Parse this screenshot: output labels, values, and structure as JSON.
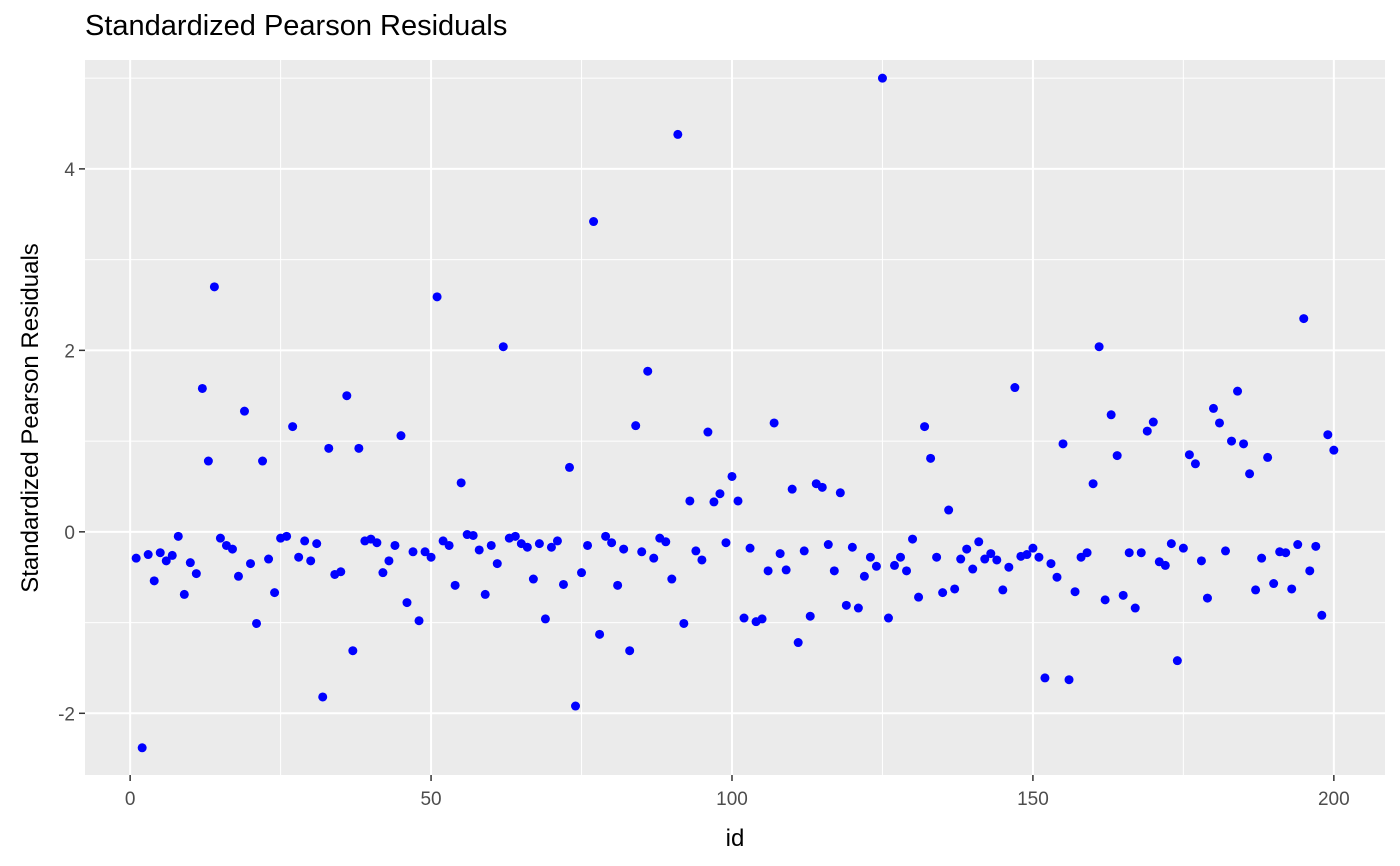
{
  "chart_data": {
    "type": "scatter",
    "title": "Standardized Pearson Residuals",
    "xlabel": "id",
    "ylabel": "Standardized Pearson Residuals",
    "xlim": [
      -7.5,
      208.5
    ],
    "ylim": [
      -2.68,
      5.2
    ],
    "x_ticks": [
      0,
      50,
      100,
      150,
      200
    ],
    "x_tick_labels": [
      "0",
      "50",
      "100",
      "150",
      "200"
    ],
    "y_ticks": [
      -2,
      0,
      2,
      4
    ],
    "y_tick_labels": [
      "-2",
      "0",
      "2",
      "4"
    ],
    "x_minor": [
      25,
      75,
      125,
      175
    ],
    "y_minor": [
      -1,
      1,
      3,
      5
    ],
    "grid": true,
    "legend": "none",
    "point_color": "#0000ff",
    "panel_color": "#ebebeb",
    "grid_color": "#ffffff",
    "x": [
      1,
      2,
      3,
      4,
      5,
      6,
      7,
      8,
      9,
      10,
      11,
      12,
      13,
      14,
      15,
      16,
      17,
      18,
      19,
      20,
      21,
      22,
      23,
      24,
      25,
      26,
      27,
      28,
      29,
      30,
      31,
      32,
      33,
      34,
      35,
      36,
      37,
      38,
      39,
      40,
      41,
      42,
      43,
      44,
      45,
      46,
      47,
      48,
      49,
      50,
      51,
      52,
      53,
      54,
      55,
      56,
      57,
      58,
      59,
      60,
      61,
      62,
      63,
      64,
      65,
      66,
      67,
      68,
      69,
      70,
      71,
      72,
      73,
      74,
      75,
      76,
      77,
      78,
      79,
      80,
      81,
      82,
      83,
      84,
      85,
      86,
      87,
      88,
      89,
      90,
      91,
      92,
      93,
      94,
      95,
      96,
      97,
      98,
      99,
      100,
      101,
      102,
      103,
      104,
      105,
      106,
      107,
      108,
      109,
      110,
      111,
      112,
      113,
      114,
      115,
      116,
      117,
      118,
      119,
      120,
      121,
      122,
      123,
      124,
      125,
      126,
      127,
      128,
      129,
      130,
      131,
      132,
      133,
      134,
      135,
      136,
      137,
      138,
      139,
      140,
      141,
      142,
      143,
      144,
      145,
      146,
      147,
      148,
      149,
      150,
      151,
      152,
      153,
      154,
      155,
      156,
      157,
      158,
      159,
      160,
      161,
      162,
      163,
      164,
      165,
      166,
      167,
      168,
      169,
      170,
      171,
      172,
      173,
      174,
      175,
      176,
      177,
      178,
      179,
      180,
      181,
      182,
      183,
      184,
      185,
      186,
      187,
      188,
      189,
      190,
      191,
      192,
      193,
      194,
      195,
      196,
      197,
      198,
      199,
      200
    ],
    "y": [
      -0.29,
      -2.38,
      -0.25,
      -0.54,
      -0.23,
      -0.32,
      -0.26,
      -0.05,
      -0.69,
      -0.34,
      -0.46,
      1.58,
      0.78,
      2.7,
      -0.07,
      -0.15,
      -0.19,
      -0.49,
      1.33,
      -0.35,
      -1.01,
      0.78,
      -0.3,
      -0.67,
      -0.07,
      -0.05,
      1.16,
      -0.28,
      -0.1,
      -0.32,
      -0.13,
      -1.82,
      0.92,
      -0.47,
      -0.44,
      1.5,
      -1.31,
      0.92,
      -0.1,
      -0.08,
      -0.12,
      -0.45,
      -0.32,
      -0.15,
      1.06,
      -0.78,
      -0.22,
      -0.98,
      -0.22,
      -0.28,
      2.59,
      -0.1,
      -0.15,
      -0.59,
      0.54,
      -0.03,
      -0.04,
      -0.2,
      -0.69,
      -0.15,
      -0.35,
      2.04,
      -0.07,
      -0.05,
      -0.13,
      -0.17,
      -0.52,
      -0.13,
      -0.96,
      -0.17,
      -0.1,
      -0.58,
      0.71,
      -1.92,
      -0.45,
      -0.15,
      3.42,
      -1.13,
      -0.05,
      -0.12,
      -0.59,
      -0.19,
      -1.31,
      1.17,
      -0.22,
      1.77,
      -0.29,
      -0.07,
      -0.11,
      -0.52,
      4.38,
      -1.01,
      0.34,
      -0.21,
      -0.31,
      1.1,
      0.33,
      0.42,
      -0.12,
      0.61,
      0.34,
      -0.95,
      -0.18,
      -0.99,
      -0.96,
      -0.43,
      1.2,
      -0.24,
      -0.42,
      0.47,
      -1.22,
      -0.21,
      -0.93,
      0.53,
      0.49,
      -0.14,
      -0.43,
      0.43,
      -0.81,
      -0.17,
      -0.84,
      -0.49,
      -0.28,
      -0.38,
      5.0,
      -0.95,
      -0.37,
      -0.28,
      -0.43,
      -0.08,
      -0.72,
      1.16,
      0.81,
      -0.28,
      -0.67,
      0.24,
      -0.63,
      -0.3,
      -0.19,
      -0.41,
      -0.11,
      -0.3,
      -0.24,
      -0.31,
      -0.64,
      -0.39,
      1.59,
      -0.27,
      -0.25,
      -0.18,
      -0.28,
      -1.61,
      -0.35,
      -0.5,
      0.97,
      -1.63,
      -0.66,
      -0.28,
      -0.23,
      0.53,
      2.04,
      -0.75,
      1.29,
      0.84,
      -0.7,
      -0.23,
      -0.84,
      -0.23,
      1.11,
      1.21,
      -0.33,
      -0.37,
      -0.13,
      -1.42,
      -0.18,
      0.85,
      0.75,
      -0.32,
      -0.73,
      1.36,
      1.2,
      -0.21,
      1.0,
      1.55,
      0.97,
      0.64,
      -0.64,
      -0.29,
      0.82,
      -0.57,
      -0.22,
      -0.23,
      -0.63,
      -0.14,
      2.35,
      -0.43,
      -0.16,
      -0.92,
      1.07,
      0.9
    ]
  }
}
